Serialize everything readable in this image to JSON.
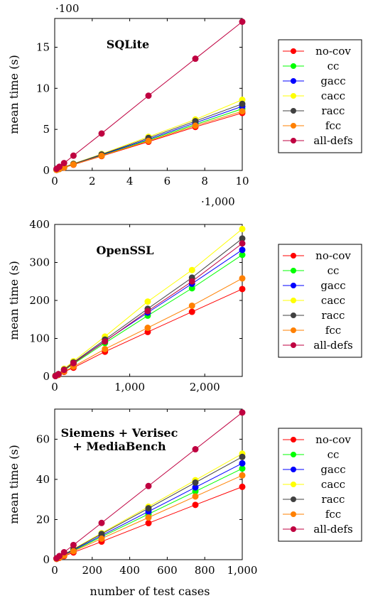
{
  "series_names": [
    "no-cov",
    "cc",
    "gacc",
    "cacc",
    "racc",
    "fcc",
    "all-defs"
  ],
  "series_colors": [
    "#ff0000",
    "#00ff00",
    "#0000ff",
    "#ffff00",
    "#404040",
    "#ff8000",
    "#bf0040"
  ],
  "xlabel": "number of test cases",
  "chart_data": [
    {
      "type": "line",
      "title": "SQLite",
      "ylabel": "mean time (s)",
      "xlabel": "",
      "y_multiplier": "·100",
      "x_multiplier": "·1,000",
      "xlim": [
        0,
        10
      ],
      "ylim": [
        0,
        18.5
      ],
      "xticks": [
        0,
        2,
        4,
        6,
        8,
        10
      ],
      "yticks": [
        0,
        5,
        10,
        15
      ],
      "xtick_labels": [
        "0",
        "2",
        "4",
        "6",
        "8",
        "10"
      ],
      "ytick_labels": [
        "0",
        "5",
        "10",
        "15"
      ],
      "x": [
        0.1,
        0.25,
        0.5,
        1,
        2.5,
        5,
        7.5,
        10
      ],
      "legend": "right",
      "series": [
        {
          "name": "no-cov",
          "values": [
            0.07,
            0.18,
            0.35,
            0.7,
            1.75,
            3.5,
            5.3,
            7.0
          ]
        },
        {
          "name": "cc",
          "values": [
            0.08,
            0.19,
            0.38,
            0.75,
            1.85,
            3.7,
            5.6,
            7.5
          ]
        },
        {
          "name": "gacc",
          "values": [
            0.08,
            0.2,
            0.39,
            0.78,
            1.9,
            3.8,
            5.8,
            7.8
          ]
        },
        {
          "name": "cacc",
          "values": [
            0.09,
            0.21,
            0.42,
            0.82,
            2.0,
            4.1,
            6.2,
            8.6
          ]
        },
        {
          "name": "racc",
          "values": [
            0.08,
            0.2,
            0.4,
            0.8,
            1.95,
            3.95,
            6.0,
            8.1
          ]
        },
        {
          "name": "fcc",
          "values": [
            0.07,
            0.18,
            0.36,
            0.72,
            1.78,
            3.6,
            5.45,
            7.2
          ]
        },
        {
          "name": "all-defs",
          "values": [
            0.2,
            0.45,
            0.9,
            1.8,
            4.5,
            9.1,
            13.6,
            18.1
          ]
        }
      ]
    },
    {
      "type": "line",
      "title": "OpenSSL",
      "ylabel": "mean time (s)",
      "xlabel": "",
      "xlim": [
        0,
        2500
      ],
      "ylim": [
        0,
        400
      ],
      "xticks": [
        0,
        1000,
        2000
      ],
      "yticks": [
        0,
        100,
        200,
        300,
        400
      ],
      "xtick_labels": [
        "0",
        "1,000",
        "2,000"
      ],
      "ytick_labels": [
        "0",
        "100",
        "200",
        "300",
        "400"
      ],
      "x": [
        10,
        50,
        125,
        250,
        670,
        1240,
        1830,
        2500
      ],
      "legend": "right",
      "series": [
        {
          "name": "no-cov",
          "values": [
            1,
            4,
            12,
            23,
            65,
            117,
            170,
            230
          ]
        },
        {
          "name": "cc",
          "values": [
            1,
            5,
            16,
            33,
            88,
            160,
            232,
            320
          ]
        },
        {
          "name": "gacc",
          "values": [
            1,
            6,
            17,
            35,
            93,
            168,
            244,
            333
          ]
        },
        {
          "name": "cacc",
          "values": [
            2,
            6,
            20,
            40,
            105,
            197,
            280,
            388
          ]
        },
        {
          "name": "racc",
          "values": [
            2,
            6,
            18,
            37,
            97,
            178,
            260,
            363
          ]
        },
        {
          "name": "fcc",
          "values": [
            1,
            5,
            13,
            26,
            72,
            128,
            186,
            258
          ]
        },
        {
          "name": "all-defs",
          "values": [
            1,
            6,
            17,
            35,
            92,
            172,
            250,
            350
          ]
        }
      ]
    },
    {
      "type": "line",
      "title": "Siemens + Verisec\n+ MediaBench",
      "title_lines": [
        "Siemens + Verisec",
        "+ MediaBench"
      ],
      "ylabel": "mean time (s)",
      "xlabel": "number of test cases",
      "xlim": [
        0,
        1000
      ],
      "ylim": [
        0,
        75
      ],
      "xticks": [
        0,
        200,
        400,
        600,
        800,
        1000
      ],
      "yticks": [
        0,
        20,
        40,
        60
      ],
      "xtick_labels": [
        "0",
        "200",
        "400",
        "600",
        "800",
        "1,000"
      ],
      "ytick_labels": [
        "0",
        "20",
        "40",
        "60"
      ],
      "x": [
        10,
        25,
        50,
        100,
        250,
        500,
        750,
        1000
      ],
      "legend": "right",
      "series": [
        {
          "name": "no-cov",
          "values": [
            0.4,
            0.9,
            1.8,
            3.6,
            9,
            18.2,
            27.3,
            36.3
          ]
        },
        {
          "name": "cc",
          "values": [
            0.5,
            1.1,
            2.3,
            4.5,
            11.4,
            22.7,
            34,
            45.4
          ]
        },
        {
          "name": "gacc",
          "values": [
            0.5,
            1.2,
            2.4,
            4.8,
            12,
            24,
            36,
            48
          ]
        },
        {
          "name": "cacc",
          "values": [
            0.5,
            1.3,
            2.6,
            5.3,
            13.2,
            26.4,
            39.6,
            52.8
          ]
        },
        {
          "name": "racc",
          "values": [
            0.5,
            1.3,
            2.6,
            5.1,
            12.8,
            25.6,
            38.4,
            51.2
          ]
        },
        {
          "name": "fcc",
          "values": [
            0.4,
            1.0,
            2.1,
            4.2,
            10.5,
            21,
            31.5,
            42
          ]
        },
        {
          "name": "all-defs",
          "values": [
            0.7,
            1.8,
            3.7,
            7.3,
            18.3,
            36.7,
            55,
            73.3
          ]
        }
      ]
    }
  ]
}
